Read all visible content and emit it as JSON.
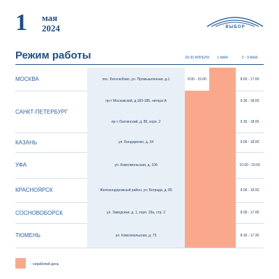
{
  "header": {
    "day": "1",
    "month": "мая",
    "year": "2024",
    "logo": "ВЫБОР",
    "title": "Режим работы"
  },
  "table": {
    "columns": [
      "29-30 АПРЕЛЯ",
      "1 МАЯ",
      "2 - 3 МАЯ"
    ],
    "rows": [
      {
        "city": "МОСКВА",
        "entries": [
          {
            "address": "пос. Боголюбово, ул. Промышленная, д.1",
            "hours": [
              "8:00 - 15.00",
              null,
              "8:00 - 17.00"
            ]
          }
        ]
      },
      {
        "city": "САНКТ-ПЕТЕРБУРГ",
        "entries": [
          {
            "address": "пр-т Московский, д.183-185, литера А",
            "hours": [
              null,
              null,
              "9.30 - 18.00"
            ]
          },
          {
            "address": "пр-т Лахтинский, д. 85, корп. 2",
            "hours": [
              null,
              null,
              "9.30 - 18.00"
            ]
          }
        ]
      },
      {
        "city": "КАЗАНЬ",
        "entries": [
          {
            "address": "ул. Бондаренко, д. 34",
            "hours": [
              null,
              null,
              "9.00 - 18.00"
            ]
          }
        ]
      },
      {
        "city": "УФА",
        "entries": [
          {
            "address": "ул. Комсомольская, д. 106",
            "hours": [
              null,
              null,
              "10.00 - 19.00"
            ]
          }
        ]
      },
      {
        "city": "КРАСНОЯРСК",
        "entries": [
          {
            "address": "Железнодорожный район, ул. Бограда, д. 85",
            "hours": [
              null,
              null,
              "9.00 - 18.00"
            ]
          }
        ]
      },
      {
        "city": "СОСНОВОБОРСК",
        "entries": [
          {
            "address": "ул. Заводская, д. 1, корп. 29а, стр. 2",
            "hours": [
              null,
              null,
              "8.00 - 17.00"
            ]
          }
        ]
      },
      {
        "city": "ТЮМЕНЬ",
        "entries": [
          {
            "address": "ул. Комсомольская, д. 75",
            "hours": [
              null,
              null,
              "8.30 - 17.30"
            ]
          }
        ]
      }
    ]
  },
  "legend": {
    "text": "- нерабочий день"
  }
}
